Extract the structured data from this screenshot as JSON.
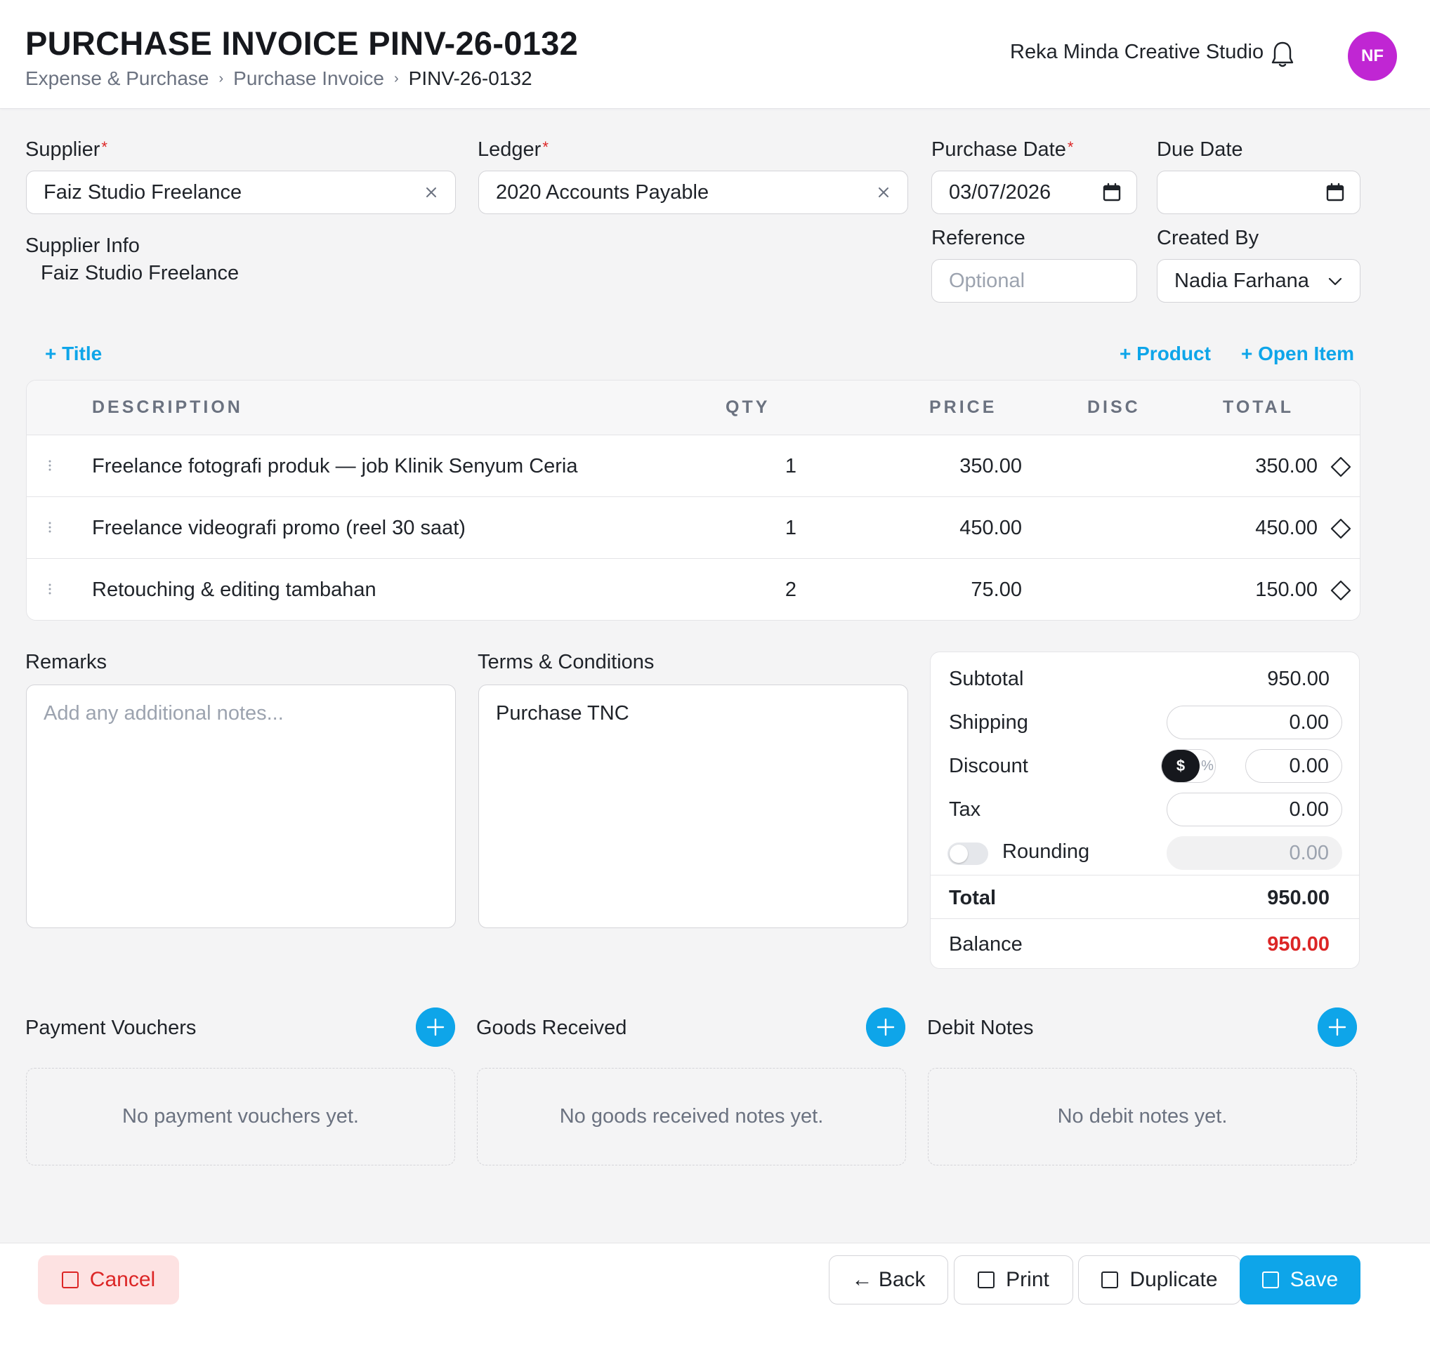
{
  "header": {
    "title": "PURCHASE INVOICE PINV-26-0132",
    "breadcrumb": [
      "Expense & Purchase",
      "Purchase Invoice",
      "PINV-26-0132"
    ],
    "company": "Reka Minda Creative Studio",
    "avatar_initials": "NF",
    "avatar_color": "#c026d3"
  },
  "form": {
    "supplier": {
      "label": "Supplier",
      "required_mark": "*",
      "value": "Faiz Studio Freelance"
    },
    "ledger": {
      "label": "Ledger",
      "required_mark": "*",
      "value": "2020 Accounts Payable"
    },
    "purchase_date": {
      "label": "Purchase Date",
      "required_mark": "*",
      "value": "03/07/2026"
    },
    "due_date": {
      "label": "Due Date",
      "value": ""
    },
    "reference": {
      "label": "Reference",
      "placeholder": "Optional"
    },
    "created_by": {
      "label": "Created By",
      "value": "Nadia Farhana"
    },
    "supplier_info": {
      "label": "Supplier Info",
      "value": "Faiz Studio Freelance"
    }
  },
  "actions": {
    "add_title": "+ Title",
    "add_product": "+ Product",
    "add_open_item": "+ Open Item"
  },
  "items_table": {
    "columns": {
      "description": "DESCRIPTION",
      "qty": "QTY",
      "price": "PRICE",
      "disc": "DISC",
      "total": "TOTAL"
    },
    "rows": [
      {
        "description": "Freelance fotografi produk — job Klinik Senyum Ceria",
        "qty": "1",
        "price": "350.00",
        "disc": "",
        "total": "350.00"
      },
      {
        "description": "Freelance videografi promo (reel 30 saat)",
        "qty": "1",
        "price": "450.00",
        "disc": "",
        "total": "450.00"
      },
      {
        "description": "Retouching & editing tambahan",
        "qty": "2",
        "price": "75.00",
        "disc": "",
        "total": "150.00"
      }
    ]
  },
  "remarks": {
    "label": "Remarks",
    "placeholder": "Add any additional notes..."
  },
  "terms": {
    "label": "Terms & Conditions",
    "value": "Purchase TNC"
  },
  "totals": {
    "subtotal_label": "Subtotal",
    "subtotal": "950.00",
    "shipping_label": "Shipping",
    "shipping": "0.00",
    "discount_label": "Discount",
    "discount_mode_amount": "$",
    "discount_mode_percent": "%",
    "discount": "0.00",
    "tax_label": "Tax",
    "tax": "0.00",
    "rounding_label": "Rounding",
    "rounding": "0.00",
    "rounding_enabled": false,
    "total_label": "Total",
    "total": "950.00",
    "balance_label": "Balance",
    "balance": "950.00",
    "balance_color": "#dc2626"
  },
  "related": {
    "payment_vouchers": {
      "title": "Payment Vouchers",
      "empty": "No payment vouchers yet."
    },
    "goods_received": {
      "title": "Goods Received",
      "empty": "No goods received notes yet."
    },
    "debit_notes": {
      "title": "Debit Notes",
      "empty": "No debit notes yet."
    }
  },
  "footer": {
    "cancel": "Cancel",
    "back": "← Back",
    "print": "Print",
    "duplicate": "Duplicate",
    "save": "Save"
  },
  "colors": {
    "accent": "#0ea5e9",
    "danger": "#dc2626"
  }
}
